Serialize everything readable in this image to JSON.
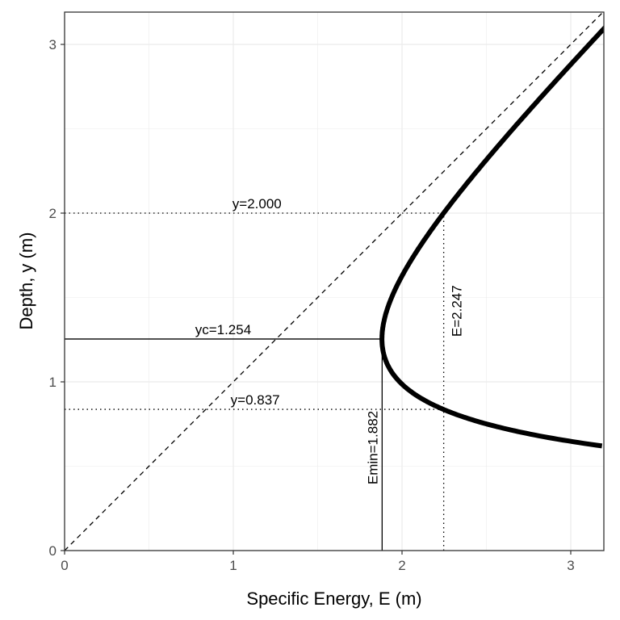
{
  "chart_data": {
    "type": "line",
    "title": "",
    "xlabel": "Specific Energy, E (m)",
    "ylabel": "Depth, y (m)",
    "xlim": [
      0,
      3.2
    ],
    "ylim": [
      0,
      3.19
    ],
    "x_ticks": [
      "0",
      "1",
      "2",
      "3"
    ],
    "y_ticks": [
      "0",
      "1",
      "2",
      "3"
    ],
    "grid": true,
    "curve": {
      "description_formula": "E = y + 0.986 / y^2",
      "y_range": [
        0.62,
        3.12
      ]
    },
    "reference_line": {
      "type": "dashed",
      "slope": 1,
      "intercept": 0
    },
    "critical": {
      "yc": 1.254,
      "Emin": 1.882
    },
    "alternate_depths": {
      "E": 2.247,
      "y_upper": 2.0,
      "y_lower": 0.837
    },
    "annotations": [
      {
        "text": "y=2.000",
        "x": 1.14,
        "y": 2.0
      },
      {
        "text": "yc=1.254",
        "x": 0.94,
        "y": 1.254
      },
      {
        "text": "y=0.837",
        "x": 1.13,
        "y": 0.837
      },
      {
        "text": "Emin=1.882",
        "x": 1.882,
        "y": 0.61,
        "rotated": true,
        "side": "left"
      },
      {
        "text": "E=2.247",
        "x": 2.247,
        "y": 1.42,
        "rotated": true,
        "side": "right"
      }
    ]
  }
}
